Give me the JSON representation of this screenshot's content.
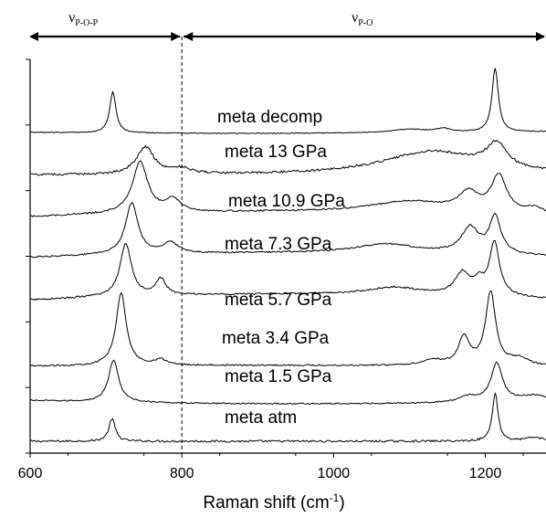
{
  "chart_data": {
    "type": "line",
    "title": "",
    "xlabel": "Raman shift (cm",
    "xlabel_sup": "-1",
    "xlabel_end": ")",
    "ylabel": "",
    "xlim": [
      600,
      1280
    ],
    "xticks": [
      600,
      800,
      1000,
      1200
    ],
    "ytick_count": 6,
    "grid": false,
    "legend": "none",
    "stacked_offset_traces": true,
    "divider_x": 800,
    "divider_style": "dashed",
    "regions": [
      {
        "symbol": "ν",
        "subscript": "P-O-P",
        "x_range": [
          600,
          800
        ]
      },
      {
        "symbol": "ν",
        "subscript": "P-O",
        "x_range": [
          800,
          1280
        ]
      }
    ],
    "series": [
      {
        "name": "meta atm",
        "color": "#000000"
      },
      {
        "name": "meta 1.5 GPa",
        "color": "#000000"
      },
      {
        "name": "meta 3.4 GPa",
        "color": "#000000"
      },
      {
        "name": "meta 5.7 GPa",
        "color": "#000000"
      },
      {
        "name": "meta 7.3 GPa",
        "color": "#000000"
      },
      {
        "name": "meta 10.9 GPa",
        "color": "#000000"
      },
      {
        "name": "meta 13 GPa",
        "color": "#000000"
      },
      {
        "name": "meta decomp",
        "color": "#000000"
      }
    ]
  }
}
